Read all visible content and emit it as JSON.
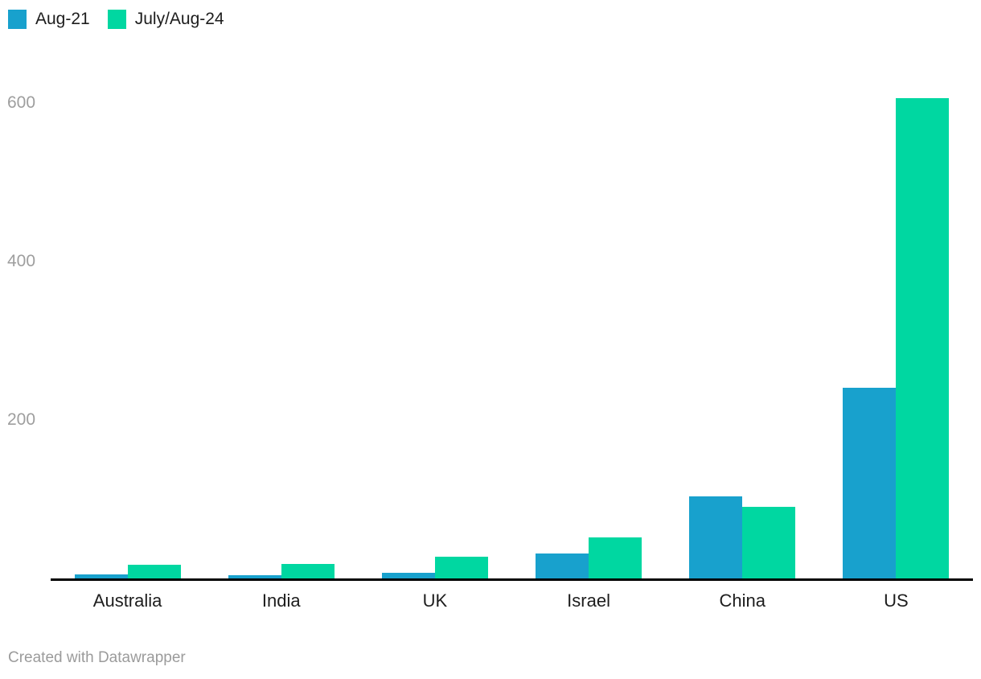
{
  "legend": {
    "items": [
      {
        "label": "Aug-21",
        "color": "#18a1cd"
      },
      {
        "label": "July/Aug-24",
        "color": "#00d7a1"
      }
    ]
  },
  "chart_data": {
    "type": "bar",
    "categories": [
      "Australia",
      "India",
      "UK",
      "Israel",
      "China",
      "US"
    ],
    "series": [
      {
        "name": "Aug-21",
        "color": "#18a1cd",
        "values": [
          5,
          4,
          7,
          31,
          104,
          241
        ]
      },
      {
        "name": "July/Aug-24",
        "color": "#00d7a1",
        "values": [
          17,
          18,
          27,
          52,
          90,
          606
        ]
      }
    ],
    "title": "",
    "xlabel": "",
    "ylabel": "",
    "yticks": [
      200,
      400,
      600
    ],
    "ylim": [
      0,
      650
    ],
    "grid": false,
    "legend_position": "top-left",
    "axis_line_color": "#000000",
    "tick_label_color": "#9e9e9e",
    "category_label_color": "#1d1d1d"
  },
  "footer": {
    "credit": "Created with Datawrapper"
  }
}
